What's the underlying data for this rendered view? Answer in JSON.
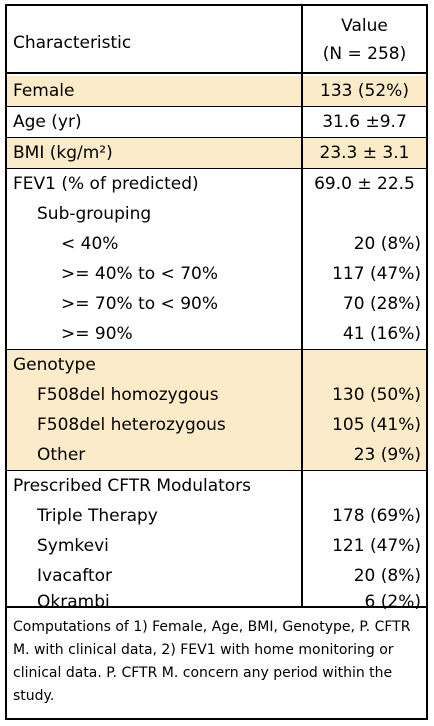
{
  "header": {
    "characteristic": "Characteristic",
    "value_line1": "Value",
    "value_line2": "(N = 258)"
  },
  "rows": [
    {
      "label": "Female",
      "value": "133 (52%)"
    },
    {
      "label": "Age (yr)",
      "value": "31.6  ±9.7"
    },
    {
      "label": "BMI (kg/m²)",
      "value": "23.3 ± 3.1"
    },
    {
      "label": "FEV1 (% of predicted)",
      "value": "69.0 ± 22.5"
    },
    {
      "label": "Sub-grouping",
      "value": ""
    },
    {
      "label": "< 40%",
      "value": "20 (8%)"
    },
    {
      "label": ">= 40% to < 70%",
      "value": "117 (47%)"
    },
    {
      "label": ">= 70% to < 90%",
      "value": "70 (28%)"
    },
    {
      "label": ">= 90%",
      "value": "41 (16%)"
    },
    {
      "label": "Genotype",
      "value": ""
    },
    {
      "label": "F508del homozygous",
      "value": "130 (50%)"
    },
    {
      "label": "F508del heterozygous",
      "value": "105 (41%)"
    },
    {
      "label": "Other",
      "value": "23 (9%)"
    },
    {
      "label": "Prescribed CFTR Modulators",
      "value": ""
    },
    {
      "label": "Triple Therapy",
      "value": "178 (69%)"
    },
    {
      "label": "Symkevi",
      "value": "121 (47%)"
    },
    {
      "label": "Ivacaftor",
      "value": "20 (8%)"
    },
    {
      "label": "Okrambi",
      "value": "6 (2%)"
    }
  ],
  "footnote": "Computations of 1) Female, Age, BMI, Genotype, P. CFTR M. with clinical data, 2) FEV1 with home monitoring or clinical data. P. CFTR M. concern any period within the study.",
  "colors": {
    "highlight": "#fcebc8",
    "border": "#000000"
  }
}
